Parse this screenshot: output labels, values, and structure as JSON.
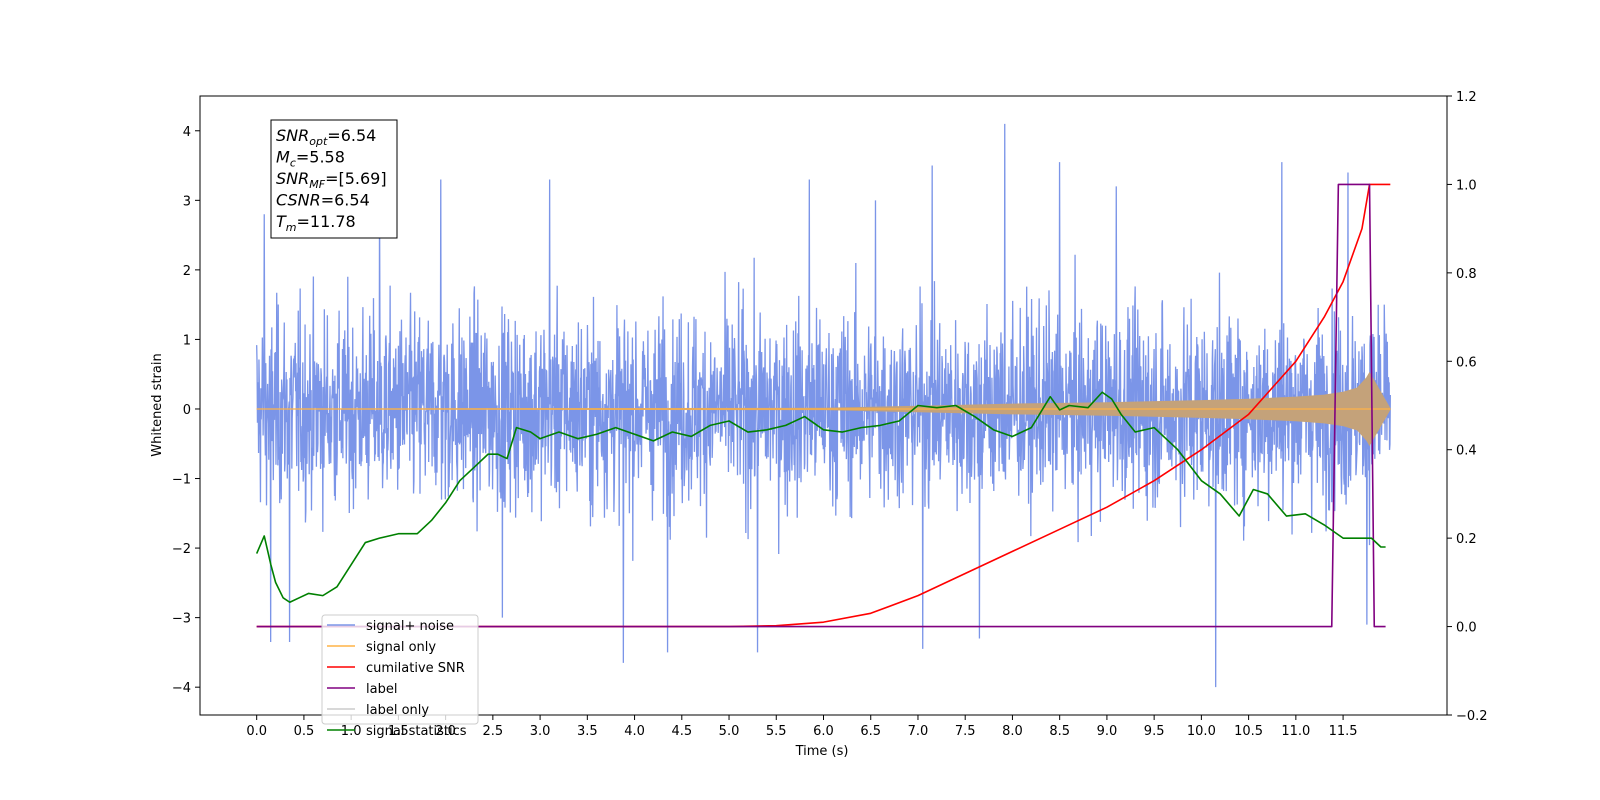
{
  "chart_data": {
    "type": "line",
    "xlabel": "Time (s)",
    "ylabel_left": "Whitened strain",
    "ylabel_right": "",
    "xlim": [
      -0.6,
      12.6
    ],
    "ylim_left": [
      -4.4,
      4.5
    ],
    "ylim_right": [
      -0.2,
      1.2
    ],
    "x_ticks": [
      "0.0",
      "0.5",
      "1.0",
      "1.5",
      "2.0",
      "2.5",
      "3.0",
      "3.5",
      "4.0",
      "4.5",
      "5.0",
      "5.5",
      "6.0",
      "6.5",
      "7.0",
      "7.5",
      "8.0",
      "8.5",
      "9.0",
      "9.5",
      "10.0",
      "10.5",
      "11.0",
      "11.5"
    ],
    "y_left_ticks": [
      "4",
      "3",
      "2",
      "1",
      "0",
      "−1",
      "−2",
      "−3",
      "−4"
    ],
    "y_right_ticks": [
      "1.2",
      "1.0",
      "0.8",
      "0.6",
      "0.4",
      "0.2",
      "0.0",
      "−0.2"
    ],
    "grid": false,
    "legend_position": "lower-left",
    "colors": {
      "signal_noise": "#7b95e8",
      "signal_only": "#ffb347",
      "signal_envelope": "#c4a27a",
      "cumulative_snr": "#ff0000",
      "label": "#800080",
      "label_only": "#cccccc",
      "signal_statistics": "#008000"
    },
    "info_box": [
      {
        "sym": "SNR",
        "sub": "opt",
        "val": "=6.54"
      },
      {
        "sym": "M",
        "sub": "c",
        "val": "=5.58"
      },
      {
        "sym": "SNR",
        "sub": "MF",
        "val": "=[5.69]"
      },
      {
        "sym": "CSNR",
        "sub": "",
        "val": "=6.54"
      },
      {
        "sym": "T",
        "sub": "m",
        "val": "=11.78"
      }
    ],
    "legend": [
      "signal+ noise",
      "signal only",
      "cumilative SNR",
      "label",
      "label only",
      "signal statistics"
    ],
    "series": [
      {
        "name": "signal+ noise",
        "axis": "left",
        "kind": "noise",
        "x_range": [
          0.0,
          12.0
        ],
        "typical_range": [
          -1.3,
          1.3
        ],
        "peak_values": [
          {
            "x": 0.08,
            "y": 2.8
          },
          {
            "x": 0.15,
            "y": -3.35
          },
          {
            "x": 0.35,
            "y": -3.35
          },
          {
            "x": 1.3,
            "y": 3.1
          },
          {
            "x": 1.95,
            "y": 3.3
          },
          {
            "x": 2.6,
            "y": -3.0
          },
          {
            "x": 3.1,
            "y": 3.3
          },
          {
            "x": 3.88,
            "y": -3.65
          },
          {
            "x": 4.35,
            "y": -3.5
          },
          {
            "x": 5.3,
            "y": -3.5
          },
          {
            "x": 5.85,
            "y": 3.3
          },
          {
            "x": 6.55,
            "y": 3.0
          },
          {
            "x": 7.05,
            "y": -3.45
          },
          {
            "x": 7.15,
            "y": 3.5
          },
          {
            "x": 7.65,
            "y": -3.3
          },
          {
            "x": 7.92,
            "y": 4.1
          },
          {
            "x": 8.5,
            "y": 3.55
          },
          {
            "x": 9.1,
            "y": 3.2
          },
          {
            "x": 10.15,
            "y": -4.0
          },
          {
            "x": 10.85,
            "y": 3.55
          },
          {
            "x": 11.55,
            "y": 3.4
          },
          {
            "x": 11.75,
            "y": -3.1
          }
        ]
      },
      {
        "name": "signal only",
        "axis": "left",
        "kind": "envelope",
        "x": [
          0,
          6.0,
          7.0,
          8.0,
          9.0,
          10.0,
          10.5,
          11.0,
          11.3,
          11.5,
          11.65,
          11.75,
          11.78,
          12.0
        ],
        "amplitude": [
          0.0,
          0.01,
          0.04,
          0.07,
          0.09,
          0.12,
          0.14,
          0.17,
          0.2,
          0.24,
          0.3,
          0.45,
          0.52,
          0.0
        ]
      },
      {
        "name": "cumilative SNR",
        "axis": "right",
        "x": [
          0,
          5.0,
          5.5,
          6.0,
          6.5,
          7.0,
          7.5,
          8.0,
          8.5,
          9.0,
          9.5,
          10.0,
          10.5,
          11.0,
          11.3,
          11.5,
          11.7,
          11.78,
          12.0
        ],
        "y": [
          0.0,
          0.0,
          0.002,
          0.01,
          0.03,
          0.07,
          0.12,
          0.17,
          0.22,
          0.27,
          0.33,
          0.4,
          0.48,
          0.6,
          0.7,
          0.78,
          0.9,
          1.0,
          1.0
        ]
      },
      {
        "name": "label",
        "axis": "right",
        "x": [
          0,
          11.38,
          11.45,
          11.78,
          11.83,
          11.95
        ],
        "y": [
          0.0,
          0.0,
          1.0,
          1.0,
          0.0,
          0.0
        ]
      },
      {
        "name": "signal statistics",
        "axis": "right",
        "x": [
          0.0,
          0.08,
          0.15,
          0.2,
          0.28,
          0.35,
          0.45,
          0.55,
          0.7,
          0.85,
          1.0,
          1.15,
          1.3,
          1.5,
          1.7,
          1.85,
          2.0,
          2.15,
          2.3,
          2.45,
          2.55,
          2.65,
          2.75,
          2.9,
          3.0,
          3.2,
          3.4,
          3.6,
          3.8,
          4.0,
          4.2,
          4.4,
          4.6,
          4.8,
          5.0,
          5.2,
          5.4,
          5.6,
          5.8,
          6.0,
          6.2,
          6.4,
          6.6,
          6.8,
          7.0,
          7.2,
          7.4,
          7.6,
          7.8,
          8.0,
          8.2,
          8.4,
          8.5,
          8.6,
          8.8,
          8.95,
          9.05,
          9.15,
          9.3,
          9.5,
          9.75,
          10.0,
          10.2,
          10.4,
          10.55,
          10.7,
          10.9,
          11.1,
          11.3,
          11.5,
          11.65,
          11.8,
          11.9,
          11.95
        ],
        "y": [
          0.165,
          0.205,
          0.14,
          0.1,
          0.065,
          0.055,
          0.065,
          0.075,
          0.07,
          0.09,
          0.14,
          0.19,
          0.2,
          0.21,
          0.21,
          0.24,
          0.28,
          0.33,
          0.36,
          0.39,
          0.39,
          0.38,
          0.45,
          0.44,
          0.425,
          0.44,
          0.425,
          0.435,
          0.45,
          0.435,
          0.42,
          0.44,
          0.43,
          0.455,
          0.465,
          0.44,
          0.445,
          0.455,
          0.475,
          0.445,
          0.44,
          0.45,
          0.455,
          0.465,
          0.5,
          0.495,
          0.5,
          0.475,
          0.445,
          0.43,
          0.45,
          0.52,
          0.49,
          0.5,
          0.495,
          0.53,
          0.515,
          0.48,
          0.44,
          0.45,
          0.4,
          0.33,
          0.3,
          0.25,
          0.31,
          0.3,
          0.25,
          0.255,
          0.23,
          0.2,
          0.2,
          0.2,
          0.18,
          0.18
        ]
      }
    ]
  }
}
